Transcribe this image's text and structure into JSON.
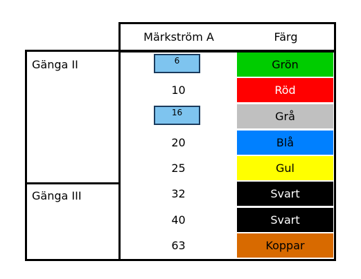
{
  "header": {
    "col_current": "Märkström A",
    "col_color": "Färg"
  },
  "groups": [
    {
      "label": "Gänga II"
    },
    {
      "label": "Gänga III"
    }
  ],
  "rows": [
    {
      "current": "6",
      "color_name": "Grön",
      "bg": "#00cc00",
      "fg": "#000000",
      "boxed": true
    },
    {
      "current": "10",
      "color_name": "Röd",
      "bg": "#ff0000",
      "fg": "#ffffff",
      "boxed": false
    },
    {
      "current": "16",
      "color_name": "Grå",
      "bg": "#c0c0c0",
      "fg": "#000000",
      "boxed": true
    },
    {
      "current": "20",
      "color_name": "Blå",
      "bg": "#0080ff",
      "fg": "#000000",
      "boxed": false
    },
    {
      "current": "25",
      "color_name": "Gul",
      "bg": "#ffff00",
      "fg": "#000000",
      "boxed": false
    },
    {
      "current": "32",
      "color_name": "Svart",
      "bg": "#000000",
      "fg": "#ffffff",
      "boxed": false
    },
    {
      "current": "40",
      "color_name": "Svart",
      "bg": "#000000",
      "fg": "#ffffff",
      "boxed": false
    },
    {
      "current": "63",
      "color_name": "Koppar",
      "bg": "#d86a00",
      "fg": "#000000",
      "boxed": false
    }
  ]
}
